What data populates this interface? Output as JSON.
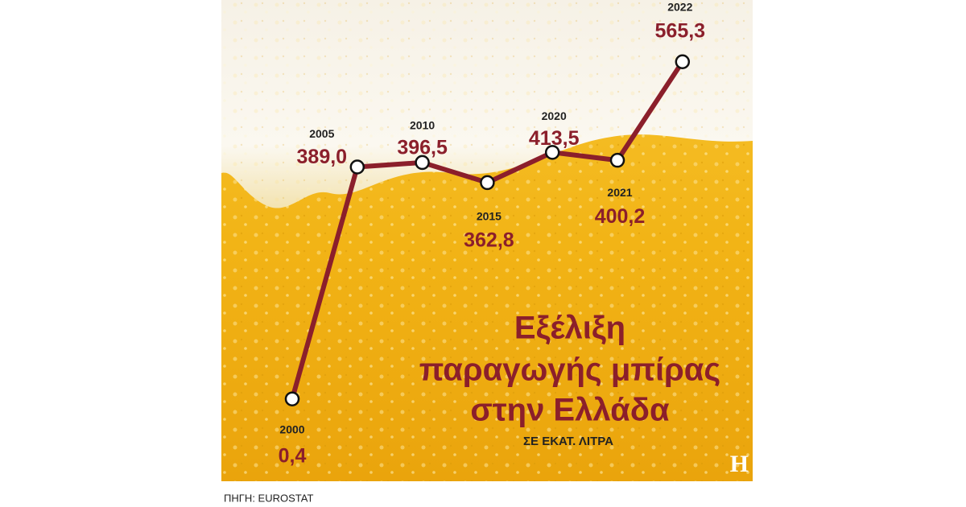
{
  "chart_data": {
    "type": "line",
    "title": [
      "Εξέλιξη",
      "παραγωγής μπίρας",
      "στην Ελλάδα"
    ],
    "subtitle": "ΣΕ ΕΚΑΤ. ΛΙΤΡΑ",
    "source": "ΠΗΓΗ: EUROSTAT",
    "logo": "H",
    "categories": [
      "2000",
      "2005",
      "2010",
      "2015",
      "2020",
      "2021",
      "2022"
    ],
    "values": [
      0.4,
      389.0,
      396.5,
      362.8,
      413.5,
      400.2,
      565.3
    ],
    "value_labels": [
      "0,4",
      "389,0",
      "396,5",
      "362,8",
      "413,5",
      "400,2",
      "565,3"
    ],
    "color": "#8b1f2b",
    "ylim": [
      0,
      600
    ]
  }
}
